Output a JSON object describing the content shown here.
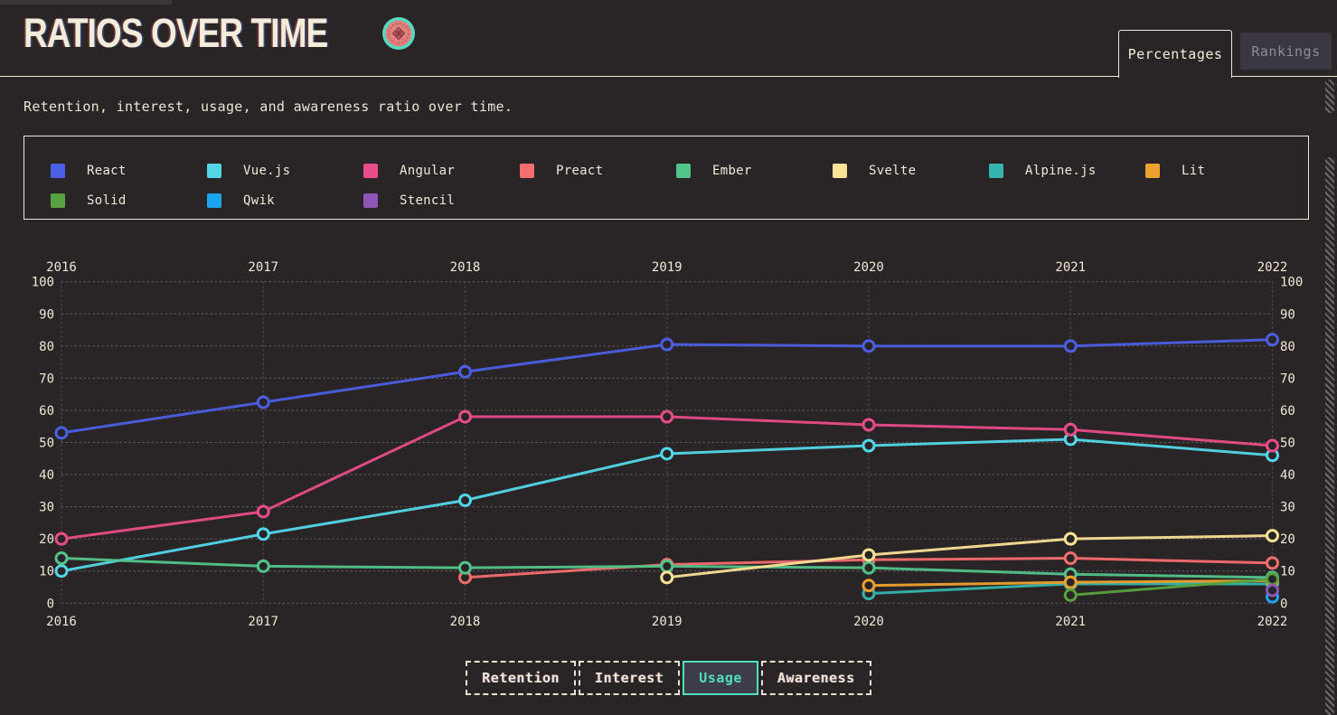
{
  "header": {
    "title": "RATIOS OVER TIME",
    "icon": "reactathon-badge-icon",
    "tabs": [
      {
        "label": "Percentages",
        "active": true
      },
      {
        "label": "Rankings",
        "active": false
      }
    ]
  },
  "subtitle": "Retention, interest, usage, and awareness ratio over time.",
  "legend": {
    "items": [
      {
        "label": "React",
        "color": "#4a5fe4"
      },
      {
        "label": "Vue.js",
        "color": "#52d7e8"
      },
      {
        "label": "Angular",
        "color": "#e94d89"
      },
      {
        "label": "Preact",
        "color": "#f56e6e"
      },
      {
        "label": "Ember",
        "color": "#52c489"
      },
      {
        "label": "Svelte",
        "color": "#fae296"
      },
      {
        "label": "Alpine.js",
        "color": "#35b5ad"
      },
      {
        "label": "Lit",
        "color": "#eda22e"
      },
      {
        "label": "Solid",
        "color": "#57a13e"
      },
      {
        "label": "Qwik",
        "color": "#1ba5ee"
      },
      {
        "label": "Stencil",
        "color": "#8f55b5"
      }
    ]
  },
  "chart_data": {
    "type": "line",
    "title": "Ratios over time — Usage (percentages)",
    "x_labels": [
      "2016",
      "2017",
      "2018",
      "2019",
      "2020",
      "2021",
      "2022"
    ],
    "ylim": [
      0,
      100
    ],
    "y_ticks": [
      0,
      10,
      20,
      30,
      40,
      50,
      60,
      70,
      80,
      90,
      100
    ],
    "grid": "dotted",
    "axis_labels_both_sides": true,
    "series": [
      {
        "name": "React",
        "color": "#4a5fe4",
        "points": [
          [
            2016,
            53
          ],
          [
            2017,
            62.5
          ],
          [
            2018,
            72
          ],
          [
            2019,
            80.5
          ],
          [
            2020,
            80
          ],
          [
            2021,
            80
          ],
          [
            2022,
            82
          ]
        ]
      },
      {
        "name": "Vue.js",
        "color": "#52d7e8",
        "points": [
          [
            2016,
            10
          ],
          [
            2017,
            21.5
          ],
          [
            2018,
            32
          ],
          [
            2019,
            46.5
          ],
          [
            2020,
            49
          ],
          [
            2021,
            51
          ],
          [
            2022,
            46
          ]
        ]
      },
      {
        "name": "Angular",
        "color": "#e94d89",
        "points": [
          [
            2016,
            20
          ],
          [
            2017,
            28.5
          ],
          [
            2018,
            58
          ],
          [
            2019,
            58
          ],
          [
            2020,
            55.5
          ],
          [
            2021,
            54
          ],
          [
            2022,
            49
          ]
        ]
      },
      {
        "name": "Preact",
        "color": "#f56e6e",
        "points": [
          [
            2018,
            8
          ],
          [
            2019,
            12
          ],
          [
            2020,
            13.5
          ],
          [
            2021,
            14
          ],
          [
            2022,
            12.5
          ]
        ]
      },
      {
        "name": "Ember",
        "color": "#52c489",
        "points": [
          [
            2016,
            14
          ],
          [
            2017,
            11.5
          ],
          [
            2018,
            11
          ],
          [
            2019,
            11.5
          ],
          [
            2020,
            11
          ],
          [
            2021,
            9
          ],
          [
            2022,
            8
          ]
        ]
      },
      {
        "name": "Svelte",
        "color": "#fae296",
        "points": [
          [
            2019,
            8
          ],
          [
            2020,
            15
          ],
          [
            2021,
            20
          ],
          [
            2022,
            21
          ]
        ]
      },
      {
        "name": "Alpine.js",
        "color": "#35b5ad",
        "points": [
          [
            2020,
            3
          ],
          [
            2021,
            6
          ],
          [
            2022,
            6
          ]
        ]
      },
      {
        "name": "Lit",
        "color": "#eda22e",
        "points": [
          [
            2020,
            5.5
          ],
          [
            2021,
            6.5
          ],
          [
            2022,
            7
          ]
        ]
      },
      {
        "name": "Solid",
        "color": "#57a13e",
        "points": [
          [
            2021,
            2.5
          ],
          [
            2022,
            7.5
          ]
        ]
      },
      {
        "name": "Qwik",
        "color": "#1ba5ee",
        "points": [
          [
            2022,
            2
          ]
        ]
      },
      {
        "name": "Stencil",
        "color": "#8f55b5",
        "points": [
          [
            2022,
            4
          ]
        ]
      }
    ]
  },
  "controls": {
    "buttons": [
      {
        "label": "Retention",
        "active": false
      },
      {
        "label": "Interest",
        "active": false
      },
      {
        "label": "Usage",
        "active": true
      },
      {
        "label": "Awareness",
        "active": false
      }
    ]
  },
  "colors": {
    "background": "#292425",
    "cream": "#efe7d6",
    "grid": "#5a5456",
    "accent_teal": "#4fe0bd",
    "inactive_tab_bg": "#3a3742",
    "inactive_tab_text": "#8f8c97"
  }
}
